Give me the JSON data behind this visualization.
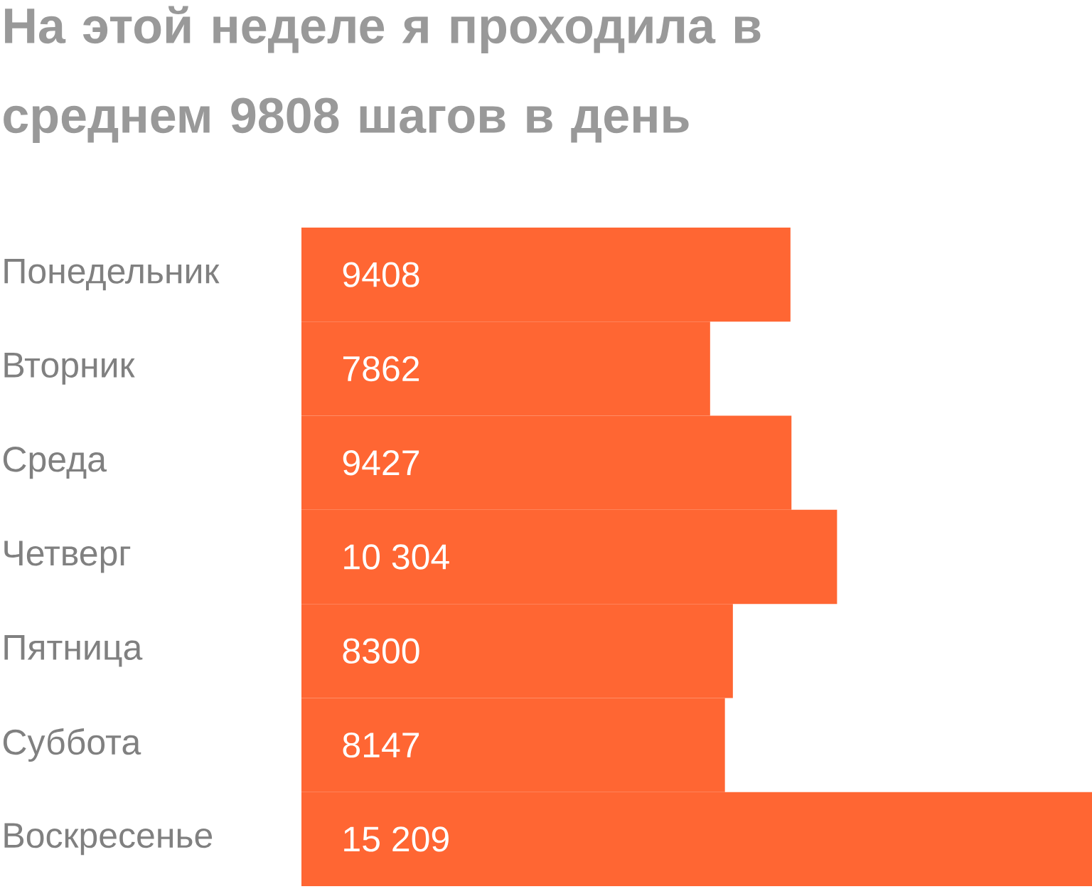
{
  "chart_data": {
    "type": "bar",
    "orientation": "horizontal",
    "title": "На этой неделе я проходила в среднем 9808 шагов в день",
    "categories": [
      "Понедельник",
      "Вторник",
      "Среда",
      "Четверг",
      "Пятница",
      "Суббота",
      "Воскресенье"
    ],
    "values": [
      9408,
      7862,
      9427,
      10304,
      8300,
      8147,
      15209
    ],
    "value_labels": [
      "9408",
      "7862",
      "9427",
      "10 304",
      "8300",
      "8147",
      "15 209"
    ],
    "color": "#ff6633"
  }
}
